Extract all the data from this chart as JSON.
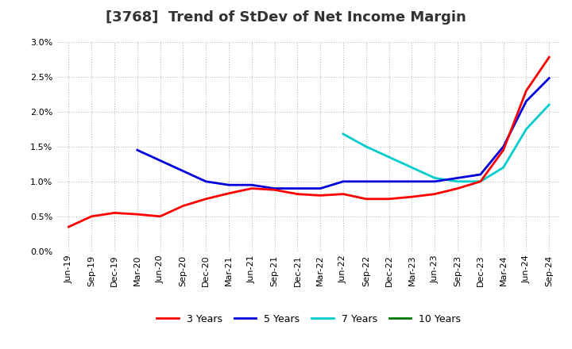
{
  "title": "[3768]  Trend of StDev of Net Income Margin",
  "title_color": "#333333",
  "background_color": "#ffffff",
  "plot_bg_color": "#ffffff",
  "grid_color": "#bbbbbb",
  "xlabels": [
    "Jun-19",
    "Sep-19",
    "Dec-19",
    "Mar-20",
    "Jun-20",
    "Sep-20",
    "Dec-20",
    "Mar-21",
    "Jun-21",
    "Sep-21",
    "Dec-21",
    "Mar-22",
    "Jun-22",
    "Sep-22",
    "Dec-22",
    "Mar-23",
    "Jun-23",
    "Sep-23",
    "Dec-23",
    "Mar-24",
    "Jun-24",
    "Sep-24"
  ],
  "ylim": [
    0.0,
    0.03
  ],
  "yticks": [
    0.0,
    0.005,
    0.01,
    0.015,
    0.02,
    0.025,
    0.03
  ],
  "series_3yr": [
    0.0035,
    0.005,
    0.0055,
    0.0053,
    0.005,
    0.0065,
    0.0075,
    0.0083,
    0.009,
    0.0088,
    0.0082,
    0.008,
    0.0082,
    0.0075,
    0.0075,
    0.0078,
    0.0082,
    0.009,
    0.01,
    0.0145,
    0.023,
    0.0278
  ],
  "series_5yr": [
    null,
    null,
    null,
    0.0145,
    0.013,
    0.0115,
    0.01,
    0.0095,
    0.0095,
    0.009,
    0.009,
    0.009,
    0.01,
    0.01,
    0.01,
    0.01,
    0.01,
    0.0105,
    0.011,
    0.015,
    0.0215,
    0.0248
  ],
  "series_7yr": [
    null,
    null,
    null,
    null,
    null,
    null,
    null,
    null,
    null,
    null,
    null,
    null,
    0.0168,
    0.015,
    0.0135,
    0.012,
    0.0105,
    0.01,
    0.01,
    0.012,
    0.0175,
    0.021
  ],
  "series_10yr": [],
  "color_3yr": "#ff0000",
  "color_5yr": "#0000dd",
  "color_7yr": "#00cccc",
  "color_10yr": "#007700",
  "linewidth": 2.0,
  "legend_entries": [
    "3 Years",
    "5 Years",
    "7 Years",
    "10 Years"
  ],
  "title_fontsize": 13,
  "tick_fontsize": 8,
  "legend_fontsize": 9
}
